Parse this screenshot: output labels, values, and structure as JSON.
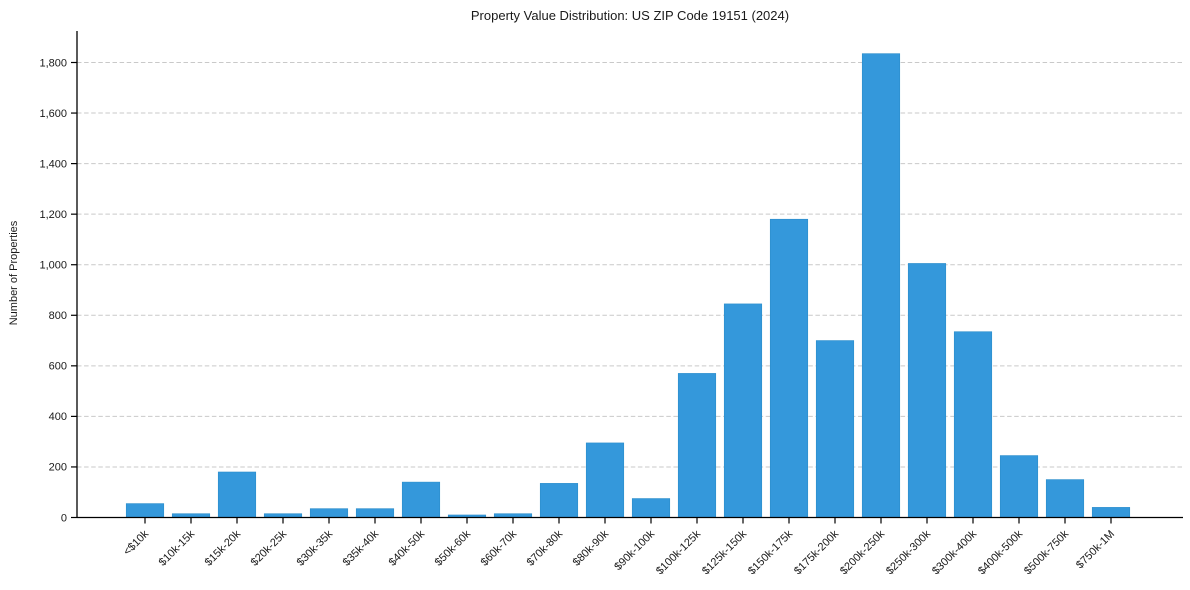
{
  "chart_data": {
    "type": "bar",
    "title": "Property Value Distribution: US ZIP Code 19151 (2024)",
    "xlabel": "",
    "ylabel": "Number of Properties",
    "categories": [
      "<$10k",
      "$10k-15k",
      "$15k-20k",
      "$20k-25k",
      "$30k-35k",
      "$35k-40k",
      "$40k-50k",
      "$50k-60k",
      "$60k-70k",
      "$70k-80k",
      "$80k-90k",
      "$90k-100k",
      "$100k-125k",
      "$125k-150k",
      "$150k-175k",
      "$175k-200k",
      "$200k-250k",
      "$250k-300k",
      "$300k-400k",
      "$400k-500k",
      "$500k-750k",
      "$750k-1M"
    ],
    "values": [
      55,
      15,
      180,
      15,
      35,
      35,
      140,
      10,
      15,
      135,
      295,
      75,
      570,
      845,
      1180,
      700,
      1835,
      1005,
      735,
      245,
      150,
      40
    ],
    "yticks": [
      0,
      200,
      400,
      600,
      800,
      1000,
      1200,
      1400,
      1600,
      1800
    ],
    "ylim": [
      0,
      1925
    ],
    "x_tick_rotation": 45,
    "legend": "none",
    "grid": {
      "horizontal": true,
      "style": "dashed",
      "color": "#c9c9c9"
    },
    "colors": {
      "bar": "#3498db",
      "bar_edge": "#2c8ecb",
      "axis": "#000000",
      "text": "#1a1a1a",
      "background": "#ffffff"
    }
  }
}
